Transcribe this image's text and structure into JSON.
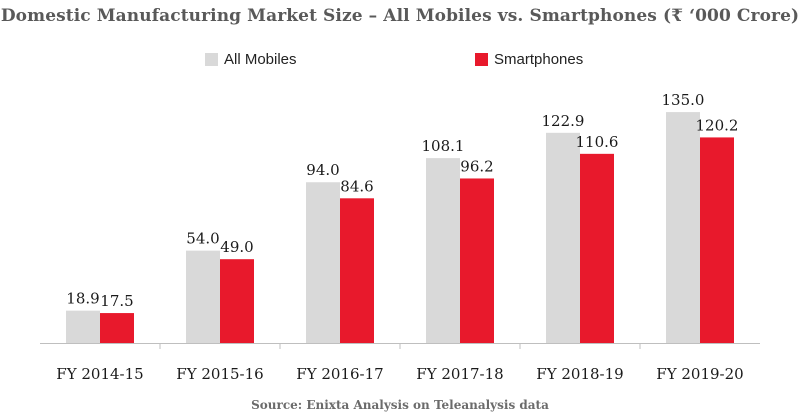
{
  "colors": {
    "all_mobiles": "#d9d9d9",
    "smartphones": "#e8192c",
    "axis": "#bfbfbf",
    "text": "#1a1a1a"
  },
  "chart_data": {
    "type": "bar",
    "title": "Domestic Manufacturing Market Size – All Mobiles vs. Smartphones (₹ ‘000 Crore)",
    "categories": [
      "FY 2014-15",
      "FY 2015-16",
      "FY 2016-17",
      "FY 2017-18",
      "FY 2018-19",
      "FY 2019-20"
    ],
    "series": [
      {
        "name": "All Mobiles",
        "values": [
          18.9,
          54.0,
          94.0,
          108.1,
          122.9,
          135.0
        ]
      },
      {
        "name": "Smartphones",
        "values": [
          17.5,
          49.0,
          84.6,
          96.2,
          110.6,
          120.2
        ]
      }
    ],
    "data_labels": [
      [
        "18.9",
        "54.0",
        "94.0",
        "108.1",
        "122.9",
        "135.0"
      ],
      [
        "17.5",
        "49.0",
        "84.6",
        "96.2",
        "110.6",
        "120.2"
      ]
    ],
    "ylim": [
      0,
      145
    ],
    "grid": false,
    "legend": "top-left",
    "source": "Source: Enixta Analysis on Teleanalysis data"
  }
}
